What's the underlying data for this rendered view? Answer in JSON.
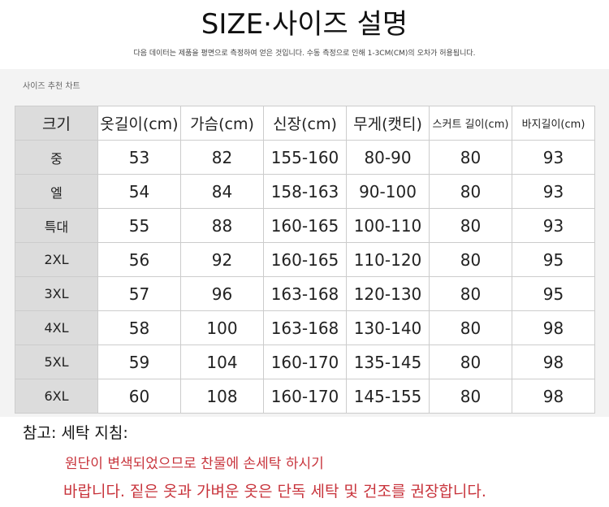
{
  "title": "SIZE·사이즈 설명",
  "subtitle": "다음 데이터는 제품을 평면으로 측정하여 얻은 것입니다. 수동 측정으로 인해 1-3CM(CM)의 오차가 허용됩니다.",
  "panel_label": "사이즈 추천 차트",
  "headers": [
    "크기",
    "옷길이(cm)",
    "가슴(cm)",
    "신장(cm)",
    "무게(캣티)",
    "스커트 길이(cm)",
    "바지길이(cm)"
  ],
  "rows": [
    [
      "중",
      "53",
      "82",
      "155-160",
      "80-90",
      "80",
      "93"
    ],
    [
      "엘",
      "54",
      "84",
      "158-163",
      "90-100",
      "80",
      "93"
    ],
    [
      "특대",
      "55",
      "88",
      "160-165",
      "100-110",
      "80",
      "93"
    ],
    [
      "2XL",
      "56",
      "92",
      "160-165",
      "110-120",
      "80",
      "95"
    ],
    [
      "3XL",
      "57",
      "96",
      "163-168",
      "120-130",
      "80",
      "95"
    ],
    [
      "4XL",
      "58",
      "100",
      "163-168",
      "130-140",
      "80",
      "98"
    ],
    [
      "5XL",
      "59",
      "104",
      "160-170",
      "135-145",
      "80",
      "98"
    ],
    [
      "6XL",
      "60",
      "108",
      "160-170",
      "145-155",
      "80",
      "98"
    ]
  ],
  "note": {
    "heading": "참고: 세탁 지침:",
    "line1": "원단이 변색되었으므로 찬물에 손세탁 하시기",
    "line2": "바랍니다. 짙은 옷과 가벼운 옷은 단독 세탁 및 건조를 권장합니다.",
    "color": "#c8343c"
  }
}
